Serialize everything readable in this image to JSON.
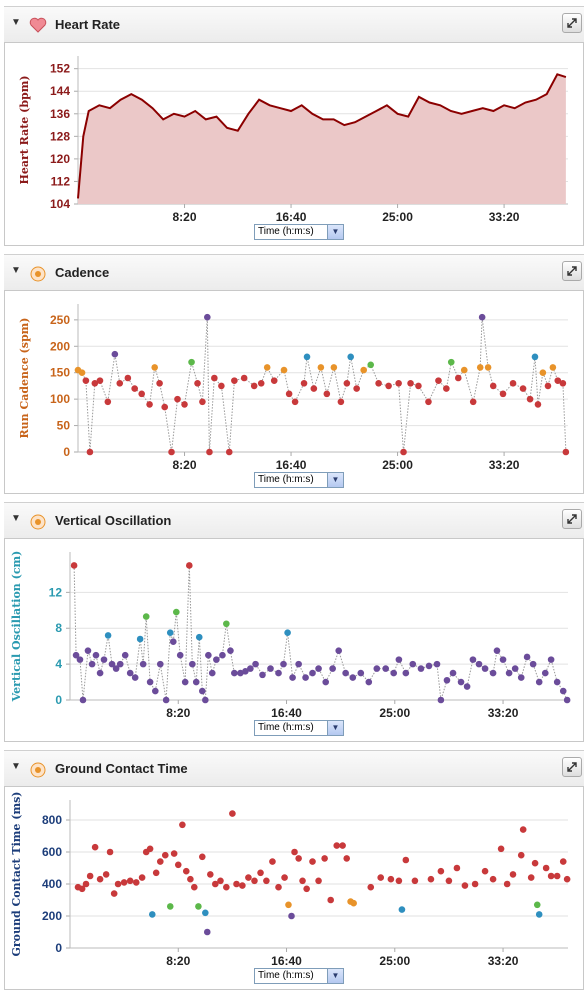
{
  "chart_data": [
    {
      "type": "line",
      "title": "Heart Rate",
      "y_label": "Heart Rate (bpm)",
      "x_label": "Time (h:m:s)",
      "axis_color": "#8b1a1a",
      "grid": true,
      "xlim": [
        0,
        2300
      ],
      "xticks": [
        {
          "value": 500,
          "label": "8:20"
        },
        {
          "value": 1000,
          "label": "16:40"
        },
        {
          "value": 1500,
          "label": "25:00"
        },
        {
          "value": 2000,
          "label": "33:20"
        }
      ],
      "ylim": [
        104,
        156.5
      ],
      "yticks": [
        104,
        112,
        120,
        128,
        136,
        144,
        152
      ],
      "series": [
        {
          "color": "#8b0000",
          "fill": "#ebc8c8",
          "x": [
            0,
            25,
            50,
            100,
            150,
            200,
            250,
            300,
            350,
            400,
            450,
            500,
            550,
            600,
            650,
            700,
            750,
            800,
            850,
            900,
            950,
            1000,
            1050,
            1100,
            1150,
            1200,
            1250,
            1300,
            1350,
            1400,
            1450,
            1500,
            1550,
            1600,
            1650,
            1700,
            1750,
            1800,
            1850,
            1900,
            1950,
            2000,
            2050,
            2100,
            2150,
            2200,
            2250,
            2290
          ],
          "values": [
            106,
            128,
            137,
            139,
            138,
            141,
            143,
            141,
            138,
            134,
            136,
            135,
            137,
            134,
            135,
            131,
            130,
            136,
            141,
            139,
            138,
            137,
            139,
            136,
            134,
            134,
            132,
            133,
            135,
            137,
            139,
            136,
            135,
            142,
            140,
            139,
            137,
            136,
            137,
            138,
            137,
            139,
            138,
            140,
            141,
            143,
            150,
            149
          ]
        }
      ]
    },
    {
      "type": "scatter",
      "title": "Cadence",
      "y_label": "Run Cadence (spm)",
      "x_label": "Time (h:m:s)",
      "axis_color": "#c8641a",
      "grid": true,
      "connect": true,
      "xlim": [
        0,
        2300
      ],
      "xticks": [
        {
          "value": 500,
          "label": "8:20"
        },
        {
          "value": 1000,
          "label": "16:40"
        },
        {
          "value": 1500,
          "label": "25:00"
        },
        {
          "value": 2000,
          "label": "33:20"
        }
      ],
      "ylim": [
        0,
        280
      ],
      "yticks": [
        0,
        50,
        100,
        150,
        200,
        250
      ],
      "series": [
        {
          "x": [
            0,
            19,
            37,
            56,
            79,
            103,
            140,
            173,
            196,
            234,
            266,
            299,
            336,
            360,
            383,
            407,
            439,
            467,
            500,
            533,
            561,
            584,
            607,
            617,
            640,
            673,
            710,
            734,
            780,
            827,
            860,
            888,
            921,
            967,
            991,
            1019,
            1061,
            1075,
            1107,
            1140,
            1168,
            1201,
            1234,
            1262,
            1280,
            1308,
            1341,
            1374,
            1411,
            1458,
            1505,
            1528,
            1561,
            1598,
            1645,
            1692,
            1729,
            1752,
            1785,
            1813,
            1855,
            1888,
            1897,
            1925,
            1949,
            1995,
            2042,
            2089,
            2122,
            2145,
            2159,
            2182,
            2206,
            2229,
            2252,
            2276,
            2290
          ],
          "values": [
            155,
            150,
            135,
            0,
            130,
            135,
            95,
            185,
            130,
            140,
            120,
            110,
            90,
            160,
            130,
            85,
            0,
            100,
            90,
            170,
            130,
            95,
            255,
            0,
            140,
            125,
            0,
            135,
            140,
            125,
            130,
            160,
            135,
            155,
            110,
            95,
            130,
            180,
            120,
            160,
            110,
            160,
            95,
            130,
            180,
            120,
            155,
            165,
            130,
            125,
            130,
            0,
            130,
            125,
            95,
            135,
            120,
            170,
            140,
            155,
            95,
            160,
            255,
            160,
            125,
            110,
            130,
            120,
            100,
            180,
            90,
            150,
            125,
            160,
            135,
            130,
            0
          ],
          "colors": [
            "#e8932a",
            "#e8932a",
            "#c8393b",
            "#c8393b",
            "#c8393b",
            "#c8393b",
            "#c8393b",
            "#6b4c9a",
            "#c8393b",
            "#c8393b",
            "#c8393b",
            "#c8393b",
            "#c8393b",
            "#e8932a",
            "#c8393b",
            "#c8393b",
            "#c8393b",
            "#c8393b",
            "#c8393b",
            "#5cb84a",
            "#c8393b",
            "#c8393b",
            "#6b4c9a",
            "#c8393b",
            "#c8393b",
            "#c8393b",
            "#c8393b",
            "#c8393b",
            "#c8393b",
            "#c8393b",
            "#c8393b",
            "#e8932a",
            "#c8393b",
            "#e8932a",
            "#c8393b",
            "#c8393b",
            "#c8393b",
            "#2e8fbf",
            "#c8393b",
            "#e8932a",
            "#c8393b",
            "#e8932a",
            "#c8393b",
            "#c8393b",
            "#2e8fbf",
            "#c8393b",
            "#e8932a",
            "#5cb84a",
            "#c8393b",
            "#c8393b",
            "#c8393b",
            "#c8393b",
            "#c8393b",
            "#c8393b",
            "#c8393b",
            "#c8393b",
            "#c8393b",
            "#5cb84a",
            "#c8393b",
            "#e8932a",
            "#c8393b",
            "#e8932a",
            "#6b4c9a",
            "#e8932a",
            "#c8393b",
            "#c8393b",
            "#c8393b",
            "#c8393b",
            "#c8393b",
            "#2e8fbf",
            "#c8393b",
            "#e8932a",
            "#c8393b",
            "#e8932a",
            "#c8393b",
            "#c8393b",
            "#c8393b"
          ]
        }
      ]
    },
    {
      "type": "scatter",
      "title": "Vertical Oscillation",
      "y_label": "Vertical Oscillation (cm)",
      "x_label": "Time (h:m:s)",
      "axis_color": "#2a9ab0",
      "grid": true,
      "connect": true,
      "xlim": [
        0,
        2300
      ],
      "xticks": [
        {
          "value": 500,
          "label": "8:20"
        },
        {
          "value": 1000,
          "label": "16:40"
        },
        {
          "value": 1500,
          "label": "25:00"
        },
        {
          "value": 2000,
          "label": "33:20"
        }
      ],
      "ylim": [
        0,
        16.5
      ],
      "yticks": [
        0,
        4,
        8,
        12
      ],
      "series": [
        {
          "x": [
            19,
            28,
            46,
            60,
            83,
            102,
            120,
            139,
            157,
            176,
            194,
            213,
            232,
            255,
            278,
            301,
            324,
            338,
            352,
            370,
            394,
            417,
            444,
            463,
            477,
            491,
            509,
            532,
            551,
            565,
            583,
            597,
            611,
            625,
            639,
            657,
            676,
            704,
            722,
            741,
            759,
            787,
            810,
            833,
            857,
            889,
            926,
            963,
            986,
            1005,
            1028,
            1056,
            1088,
            1120,
            1148,
            1181,
            1213,
            1241,
            1273,
            1306,
            1343,
            1380,
            1417,
            1458,
            1495,
            1519,
            1551,
            1583,
            1621,
            1658,
            1695,
            1713,
            1741,
            1769,
            1806,
            1834,
            1861,
            1889,
            1917,
            1954,
            1972,
            2000,
            2028,
            2056,
            2084,
            2111,
            2139,
            2167,
            2195,
            2222,
            2250,
            2278,
            2296
          ],
          "values": [
            15,
            5,
            4.5,
            0,
            5.5,
            4,
            5,
            3,
            4.5,
            7.2,
            4,
            3.5,
            4,
            5,
            3,
            2.5,
            6.8,
            4,
            9.3,
            2,
            1,
            4,
            0,
            7.5,
            6.5,
            9.8,
            5,
            2,
            15,
            4,
            2,
            7,
            1,
            0,
            5,
            3,
            4.5,
            5,
            8.5,
            5.5,
            3,
            3,
            3.2,
            3.5,
            4,
            2.8,
            3.5,
            3,
            4,
            7.5,
            2.5,
            4,
            2.5,
            3,
            3.5,
            2,
            3.5,
            5.5,
            3,
            2.5,
            3,
            2,
            3.5,
            3.5,
            3,
            4.5,
            3,
            4,
            3.5,
            3.8,
            4,
            0,
            2.2,
            3,
            2,
            1.5,
            4.5,
            4,
            3.5,
            3,
            5.5,
            4.5,
            3,
            3.5,
            2.5,
            4.8,
            4,
            2,
            3,
            4.5,
            2,
            1,
            0
          ],
          "colors": [
            "#c8393b",
            "#6b4c9a",
            "#6b4c9a",
            "#6b4c9a",
            "#6b4c9a",
            "#6b4c9a",
            "#6b4c9a",
            "#6b4c9a",
            "#6b4c9a",
            "#2e8fbf",
            "#6b4c9a",
            "#6b4c9a",
            "#6b4c9a",
            "#6b4c9a",
            "#6b4c9a",
            "#6b4c9a",
            "#2e8fbf",
            "#6b4c9a",
            "#5cb84a",
            "#6b4c9a",
            "#6b4c9a",
            "#6b4c9a",
            "#6b4c9a",
            "#2e8fbf",
            "#6b4c9a",
            "#5cb84a",
            "#6b4c9a",
            "#6b4c9a",
            "#c8393b",
            "#6b4c9a",
            "#6b4c9a",
            "#2e8fbf",
            "#6b4c9a",
            "#6b4c9a",
            "#6b4c9a",
            "#6b4c9a",
            "#6b4c9a",
            "#6b4c9a",
            "#5cb84a",
            "#6b4c9a",
            "#6b4c9a",
            "#6b4c9a",
            "#6b4c9a",
            "#6b4c9a",
            "#6b4c9a",
            "#6b4c9a",
            "#6b4c9a",
            "#6b4c9a",
            "#6b4c9a",
            "#2e8fbf",
            "#6b4c9a",
            "#6b4c9a",
            "#6b4c9a",
            "#6b4c9a",
            "#6b4c9a",
            "#6b4c9a",
            "#6b4c9a",
            "#6b4c9a",
            "#6b4c9a",
            "#6b4c9a",
            "#6b4c9a",
            "#6b4c9a",
            "#6b4c9a",
            "#6b4c9a",
            "#6b4c9a",
            "#6b4c9a",
            "#6b4c9a",
            "#6b4c9a",
            "#6b4c9a",
            "#6b4c9a",
            "#6b4c9a",
            "#6b4c9a",
            "#6b4c9a",
            "#6b4c9a",
            "#6b4c9a",
            "#6b4c9a",
            "#6b4c9a",
            "#6b4c9a",
            "#6b4c9a",
            "#6b4c9a",
            "#6b4c9a",
            "#6b4c9a",
            "#6b4c9a",
            "#6b4c9a",
            "#6b4c9a",
            "#6b4c9a",
            "#6b4c9a",
            "#6b4c9a",
            "#6b4c9a",
            "#6b4c9a",
            "#6b4c9a",
            "#6b4c9a",
            "#6b4c9a"
          ]
        }
      ]
    },
    {
      "type": "scatter",
      "title": "Ground Contact Time",
      "y_label": "Ground Contact Time (ms)",
      "x_label": "Time (h:m:s)",
      "axis_color": "#1c3d7a",
      "grid": true,
      "connect": false,
      "xlim": [
        0,
        2300
      ],
      "xticks": [
        {
          "value": 500,
          "label": "8:20"
        },
        {
          "value": 1000,
          "label": "16:40"
        },
        {
          "value": 1500,
          "label": "25:00"
        },
        {
          "value": 2000,
          "label": "33:20"
        }
      ],
      "ylim": [
        0,
        925
      ],
      "yticks": [
        0,
        200,
        400,
        600,
        800
      ],
      "series": [
        {
          "x": [
            37,
            56,
            74,
            93,
            116,
            139,
            167,
            185,
            204,
            222,
            250,
            278,
            306,
            333,
            352,
            370,
            380,
            398,
            417,
            440,
            463,
            481,
            500,
            519,
            537,
            556,
            574,
            593,
            611,
            625,
            634,
            648,
            671,
            695,
            722,
            750,
            769,
            796,
            824,
            852,
            880,
            907,
            935,
            963,
            991,
            1009,
            1023,
            1037,
            1056,
            1074,
            1093,
            1120,
            1148,
            1176,
            1204,
            1232,
            1259,
            1278,
            1296,
            1310,
            1389,
            1435,
            1482,
            1519,
            1533,
            1551,
            1593,
            1667,
            1713,
            1750,
            1787,
            1824,
            1871,
            1917,
            1954,
            1991,
            2019,
            2046,
            2084,
            2093,
            2130,
            2148,
            2158,
            2167,
            2199,
            2222,
            2250,
            2278,
            2296
          ],
          "values": [
            380,
            370,
            400,
            450,
            630,
            430,
            460,
            600,
            340,
            400,
            410,
            420,
            410,
            440,
            600,
            620,
            210,
            470,
            540,
            580,
            260,
            590,
            520,
            770,
            480,
            430,
            380,
            260,
            570,
            220,
            100,
            460,
            400,
            420,
            380,
            840,
            400,
            390,
            440,
            420,
            470,
            420,
            540,
            380,
            440,
            270,
            200,
            600,
            560,
            420,
            370,
            540,
            420,
            560,
            300,
            640,
            640,
            560,
            290,
            280,
            380,
            440,
            430,
            420,
            240,
            550,
            420,
            430,
            480,
            420,
            500,
            390,
            400,
            480,
            430,
            620,
            400,
            460,
            580,
            740,
            440,
            530,
            270,
            210,
            500,
            450,
            450,
            540,
            430
          ],
          "colors": [
            "#c8393b",
            "#c8393b",
            "#c8393b",
            "#c8393b",
            "#c8393b",
            "#c8393b",
            "#c8393b",
            "#c8393b",
            "#c8393b",
            "#c8393b",
            "#c8393b",
            "#c8393b",
            "#c8393b",
            "#c8393b",
            "#c8393b",
            "#c8393b",
            "#2e8fbf",
            "#c8393b",
            "#c8393b",
            "#c8393b",
            "#5cb84a",
            "#c8393b",
            "#c8393b",
            "#c8393b",
            "#c8393b",
            "#c8393b",
            "#c8393b",
            "#5cb84a",
            "#c8393b",
            "#2e8fbf",
            "#6b4c9a",
            "#c8393b",
            "#c8393b",
            "#c8393b",
            "#c8393b",
            "#c8393b",
            "#c8393b",
            "#c8393b",
            "#c8393b",
            "#c8393b",
            "#c8393b",
            "#c8393b",
            "#c8393b",
            "#c8393b",
            "#c8393b",
            "#e8932a",
            "#6b4c9a",
            "#c8393b",
            "#c8393b",
            "#c8393b",
            "#c8393b",
            "#c8393b",
            "#c8393b",
            "#c8393b",
            "#c8393b",
            "#c8393b",
            "#c8393b",
            "#c8393b",
            "#e8932a",
            "#e8932a",
            "#c8393b",
            "#c8393b",
            "#c8393b",
            "#c8393b",
            "#2e8fbf",
            "#c8393b",
            "#c8393b",
            "#c8393b",
            "#c8393b",
            "#c8393b",
            "#c8393b",
            "#c8393b",
            "#c8393b",
            "#c8393b",
            "#c8393b",
            "#c8393b",
            "#c8393b",
            "#c8393b",
            "#c8393b",
            "#c8393b",
            "#c8393b",
            "#c8393b",
            "#5cb84a",
            "#2e8fbf",
            "#c8393b",
            "#c8393b",
            "#c8393b",
            "#c8393b",
            "#c8393b"
          ]
        }
      ]
    }
  ]
}
